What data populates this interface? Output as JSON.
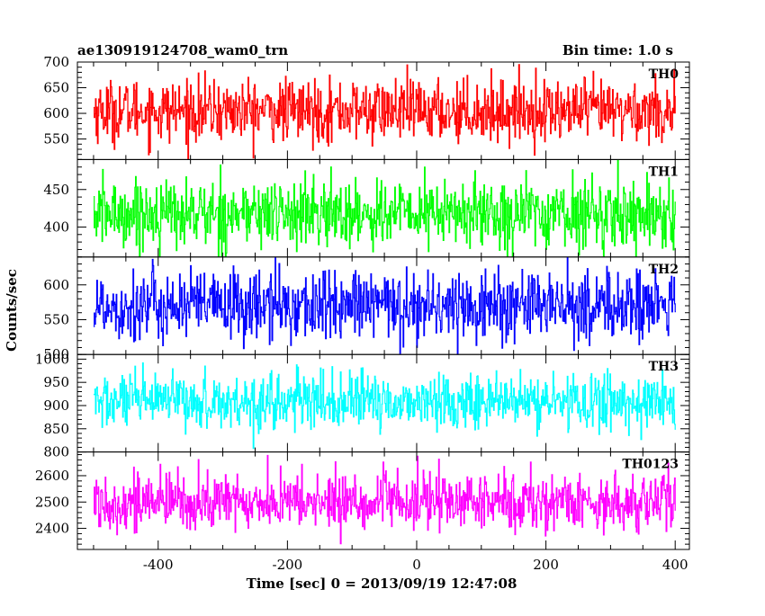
{
  "chart_data": {
    "type": "line",
    "title_left": "ae130919124708_wam0_trn",
    "title_right": "Bin time: 1.0 s",
    "xlabel": "Time [sec] 0 = 2013/09/19 12:47:08",
    "ylabel": "Counts/sec",
    "x_range": [
      -500,
      400
    ],
    "xlim": [
      -525,
      422
    ],
    "x_ticks": [
      -400,
      -200,
      0,
      200,
      400
    ],
    "bin_time_s": 1.0,
    "panels": [
      {
        "name": "TH0",
        "color": "#ff0000",
        "ylim": [
          510,
          700
        ],
        "y_ticks": [
          550,
          600,
          650,
          700
        ],
        "mean": 605,
        "sd": 30
      },
      {
        "name": "TH1",
        "color": "#00ff00",
        "ylim": [
          360,
          490
        ],
        "y_ticks": [
          400,
          450
        ],
        "mean": 418,
        "sd": 23
      },
      {
        "name": "TH2",
        "color": "#0000ff",
        "ylim": [
          500,
          640
        ],
        "y_ticks": [
          500,
          550,
          600
        ],
        "mean": 570,
        "sd": 26
      },
      {
        "name": "TH3",
        "color": "#00ffff",
        "ylim": [
          800,
          1010
        ],
        "y_ticks": [
          800,
          850,
          900,
          950,
          1000
        ],
        "mean": 908,
        "sd": 30
      },
      {
        "name": "TH0123",
        "color": "#ff00ff",
        "ylim": [
          2320,
          2690
        ],
        "y_ticks": [
          2400,
          2500,
          2600
        ],
        "mean": 2500,
        "sd": 55
      }
    ]
  }
}
